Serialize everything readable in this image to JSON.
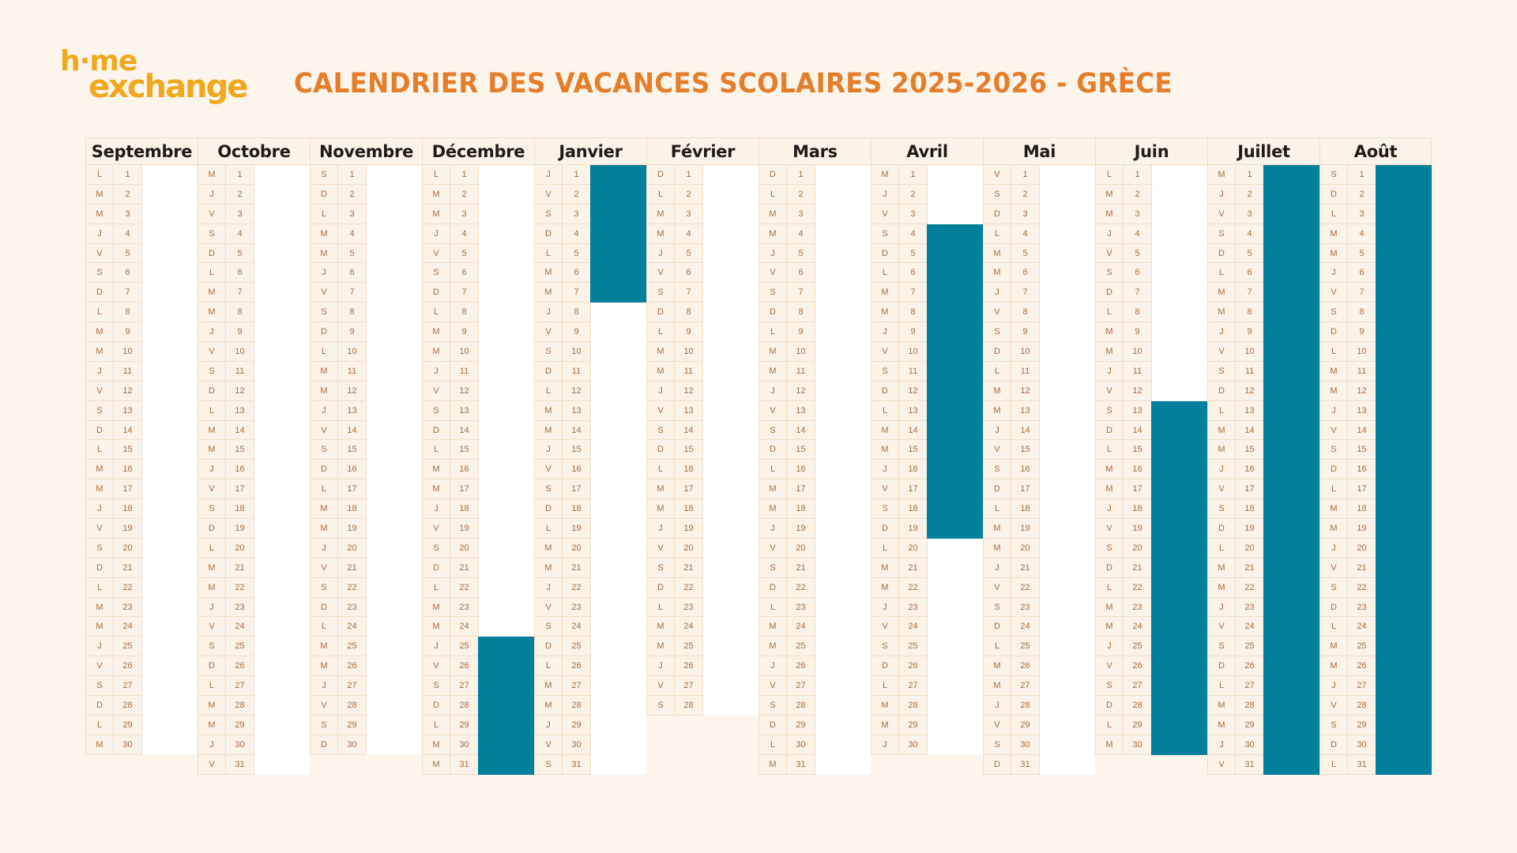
{
  "logo": {
    "line1": "h·me",
    "line2": "exchange"
  },
  "title": "CALENDRIER DES VACANCES SCOLAIRES 2025-2026 - GRÈCE",
  "colors": {
    "background": "#FCF5EC",
    "title": "#E57E2A",
    "logo": "#F2A81D",
    "holiday": "#00809A",
    "cell_text": "#A86A3A",
    "border": "#F3DCC0"
  },
  "months": [
    {
      "name": "Septembre",
      "days": 30,
      "weekdays": [
        "L",
        "M",
        "M",
        "J",
        "V",
        "S",
        "D",
        "L",
        "M",
        "M",
        "J",
        "V",
        "S",
        "D",
        "L",
        "M",
        "M",
        "J",
        "V",
        "S",
        "D",
        "L",
        "M",
        "M",
        "J",
        "V",
        "S",
        "D",
        "L",
        "M"
      ],
      "holidays": []
    },
    {
      "name": "Octobre",
      "days": 31,
      "weekdays": [
        "M",
        "J",
        "V",
        "S",
        "D",
        "L",
        "M",
        "M",
        "J",
        "V",
        "S",
        "D",
        "L",
        "M",
        "M",
        "J",
        "V",
        "S",
        "D",
        "L",
        "M",
        "M",
        "J",
        "V",
        "S",
        "D",
        "L",
        "M",
        "M",
        "J",
        "V"
      ],
      "holidays": []
    },
    {
      "name": "Novembre",
      "days": 30,
      "weekdays": [
        "S",
        "D",
        "L",
        "M",
        "M",
        "J",
        "V",
        "S",
        "D",
        "L",
        "M",
        "M",
        "J",
        "V",
        "S",
        "D",
        "L",
        "M",
        "M",
        "J",
        "V",
        "S",
        "D",
        "L",
        "M",
        "M",
        "J",
        "V",
        "S",
        "D"
      ],
      "holidays": []
    },
    {
      "name": "Décembre",
      "days": 31,
      "weekdays": [
        "L",
        "M",
        "M",
        "J",
        "V",
        "S",
        "D",
        "L",
        "M",
        "M",
        "J",
        "V",
        "S",
        "D",
        "L",
        "M",
        "M",
        "J",
        "V",
        "S",
        "D",
        "L",
        "M",
        "M",
        "J",
        "V",
        "S",
        "D",
        "L",
        "M",
        "M"
      ],
      "holidays": [
        [
          25,
          31
        ]
      ]
    },
    {
      "name": "Janvier",
      "days": 31,
      "weekdays": [
        "J",
        "V",
        "S",
        "D",
        "L",
        "M",
        "M",
        "J",
        "V",
        "S",
        "D",
        "L",
        "M",
        "M",
        "J",
        "V",
        "S",
        "D",
        "L",
        "M",
        "M",
        "J",
        "V",
        "S",
        "D",
        "L",
        "M",
        "M",
        "J",
        "V",
        "S"
      ],
      "holidays": [
        [
          1,
          7
        ]
      ]
    },
    {
      "name": "Février",
      "days": 28,
      "weekdays": [
        "D",
        "L",
        "M",
        "M",
        "J",
        "V",
        "S",
        "D",
        "L",
        "M",
        "M",
        "J",
        "V",
        "S",
        "D",
        "L",
        "M",
        "M",
        "J",
        "V",
        "S",
        "D",
        "L",
        "M",
        "M",
        "J",
        "V",
        "S"
      ],
      "holidays": []
    },
    {
      "name": "Mars",
      "days": 31,
      "weekdays": [
        "D",
        "L",
        "M",
        "M",
        "J",
        "V",
        "S",
        "D",
        "L",
        "M",
        "M",
        "J",
        "V",
        "S",
        "D",
        "L",
        "M",
        "M",
        "J",
        "V",
        "S",
        "D",
        "L",
        "M",
        "M",
        "J",
        "V",
        "S",
        "D",
        "L",
        "M"
      ],
      "holidays": []
    },
    {
      "name": "Avril",
      "days": 30,
      "weekdays": [
        "M",
        "J",
        "V",
        "S",
        "D",
        "L",
        "M",
        "M",
        "J",
        "V",
        "S",
        "D",
        "L",
        "M",
        "M",
        "J",
        "V",
        "S",
        "D",
        "L",
        "M",
        "M",
        "J",
        "V",
        "S",
        "D",
        "L",
        "M",
        "M",
        "J"
      ],
      "holidays": [
        [
          4,
          19
        ]
      ]
    },
    {
      "name": "Mai",
      "days": 31,
      "weekdays": [
        "V",
        "S",
        "D",
        "L",
        "M",
        "M",
        "J",
        "V",
        "S",
        "D",
        "L",
        "M",
        "M",
        "J",
        "V",
        "S",
        "D",
        "L",
        "M",
        "M",
        "J",
        "V",
        "S",
        "D",
        "L",
        "M",
        "M",
        "J",
        "V",
        "S",
        "D"
      ],
      "holidays": []
    },
    {
      "name": "Juin",
      "days": 30,
      "weekdays": [
        "L",
        "M",
        "M",
        "J",
        "V",
        "S",
        "D",
        "L",
        "M",
        "M",
        "J",
        "V",
        "S",
        "D",
        "L",
        "M",
        "M",
        "J",
        "V",
        "S",
        "D",
        "L",
        "M",
        "M",
        "J",
        "V",
        "S",
        "D",
        "L",
        "M"
      ],
      "holidays": [
        [
          13,
          30
        ]
      ]
    },
    {
      "name": "Juillet",
      "days": 31,
      "weekdays": [
        "M",
        "J",
        "V",
        "S",
        "D",
        "L",
        "M",
        "M",
        "J",
        "V",
        "S",
        "D",
        "L",
        "M",
        "M",
        "J",
        "V",
        "S",
        "D",
        "L",
        "M",
        "M",
        "J",
        "V",
        "S",
        "D",
        "L",
        "M",
        "M",
        "J",
        "V"
      ],
      "holidays": [
        [
          1,
          31
        ]
      ]
    },
    {
      "name": "Août",
      "days": 31,
      "weekdays": [
        "S",
        "D",
        "L",
        "M",
        "M",
        "J",
        "V",
        "S",
        "D",
        "L",
        "M",
        "M",
        "J",
        "V",
        "S",
        "D",
        "L",
        "M",
        "M",
        "J",
        "V",
        "S",
        "D",
        "L",
        "M",
        "M",
        "J",
        "V",
        "S",
        "D",
        "L"
      ],
      "holidays": [
        [
          1,
          31
        ]
      ]
    }
  ]
}
